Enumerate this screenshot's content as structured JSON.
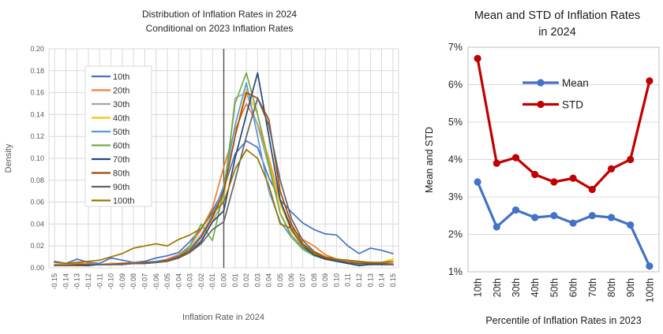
{
  "page": {
    "background": "#ffffff",
    "grid_color": "#d9d9d9",
    "reference_line_color": "#595959"
  },
  "chart_data": [
    {
      "type": "line",
      "title": "Distribution of Inflation Rates in 2024 Conditional on 2023 Inflation Rates",
      "title_lines": [
        "Distribution of Inflation Rates in 2024",
        "Conditional on 2023 Inflation Rates"
      ],
      "xlabel": "Inflation Rate in 2024",
      "ylabel": "Density",
      "xlim": [
        -0.155,
        0.155
      ],
      "ylim": [
        0,
        0.2
      ],
      "grid": "both",
      "reference_line_x": 0,
      "legend_position": "inside-left",
      "y_ticks": [
        0,
        0.02,
        0.04,
        0.06,
        0.08,
        0.1,
        0.12,
        0.14,
        0.16,
        0.18,
        0.2
      ],
      "x": [
        -0.15,
        -0.14,
        -0.13,
        -0.12,
        -0.11,
        -0.1,
        -0.09,
        -0.08,
        -0.07,
        -0.06,
        -0.05,
        -0.04,
        -0.03,
        -0.02,
        -0.01,
        0.0,
        0.01,
        0.02,
        0.03,
        0.04,
        0.05,
        0.06,
        0.07,
        0.08,
        0.09,
        0.1,
        0.11,
        0.12,
        0.13,
        0.14,
        0.15
      ],
      "series": [
        {
          "name": "10th",
          "color": "#4472C4",
          "values": [
            0.006,
            0.004,
            0.008,
            0.005,
            0.004,
            0.009,
            0.007,
            0.005,
            0.006,
            0.009,
            0.011,
            0.014,
            0.024,
            0.036,
            0.052,
            0.072,
            0.104,
            0.116,
            0.11,
            0.082,
            0.062,
            0.051,
            0.041,
            0.035,
            0.031,
            0.03,
            0.02,
            0.013,
            0.018,
            0.016,
            0.013
          ]
        },
        {
          "name": "20th",
          "color": "#ED7D31",
          "values": [
            0.003,
            0.003,
            0.004,
            0.004,
            0.003,
            0.004,
            0.004,
            0.005,
            0.005,
            0.006,
            0.008,
            0.012,
            0.02,
            0.035,
            0.055,
            0.092,
            0.126,
            0.15,
            0.131,
            0.1,
            0.061,
            0.037,
            0.026,
            0.02,
            0.012,
            0.008,
            0.006,
            0.005,
            0.004,
            0.005,
            0.004
          ]
        },
        {
          "name": "30th",
          "color": "#A5A5A5",
          "values": [
            0.002,
            0.002,
            0.003,
            0.003,
            0.003,
            0.003,
            0.004,
            0.004,
            0.005,
            0.005,
            0.006,
            0.009,
            0.015,
            0.025,
            0.042,
            0.062,
            0.155,
            0.16,
            0.13,
            0.092,
            0.05,
            0.03,
            0.019,
            0.012,
            0.009,
            0.007,
            0.005,
            0.004,
            0.004,
            0.003,
            0.003
          ]
        },
        {
          "name": "40th",
          "color": "#FFC000",
          "values": [
            0.002,
            0.002,
            0.002,
            0.003,
            0.003,
            0.003,
            0.003,
            0.004,
            0.004,
            0.005,
            0.007,
            0.01,
            0.017,
            0.028,
            0.045,
            0.068,
            0.12,
            0.163,
            0.14,
            0.098,
            0.058,
            0.034,
            0.02,
            0.013,
            0.009,
            0.007,
            0.005,
            0.004,
            0.004,
            0.005,
            0.008
          ]
        },
        {
          "name": "50th",
          "color": "#5B9BD5",
          "values": [
            0.002,
            0.002,
            0.003,
            0.003,
            0.003,
            0.003,
            0.004,
            0.004,
            0.005,
            0.006,
            0.007,
            0.011,
            0.018,
            0.03,
            0.048,
            0.075,
            0.13,
            0.169,
            0.12,
            0.07,
            0.042,
            0.028,
            0.018,
            0.012,
            0.008,
            0.006,
            0.005,
            0.004,
            0.003,
            0.003,
            0.003
          ]
        },
        {
          "name": "60th",
          "color": "#70AD47",
          "values": [
            0.002,
            0.002,
            0.002,
            0.003,
            0.003,
            0.003,
            0.003,
            0.004,
            0.004,
            0.005,
            0.006,
            0.01,
            0.02,
            0.04,
            0.025,
            0.07,
            0.15,
            0.178,
            0.14,
            0.095,
            0.05,
            0.028,
            0.017,
            0.011,
            0.008,
            0.006,
            0.004,
            0.003,
            0.004,
            0.003,
            0.003
          ]
        },
        {
          "name": "70th",
          "color": "#264478",
          "values": [
            0.002,
            0.002,
            0.002,
            0.002,
            0.003,
            0.003,
            0.003,
            0.004,
            0.004,
            0.005,
            0.006,
            0.009,
            0.014,
            0.024,
            0.042,
            0.052,
            0.1,
            0.14,
            0.178,
            0.12,
            0.062,
            0.035,
            0.02,
            0.012,
            0.008,
            0.006,
            0.004,
            0.002,
            0.003,
            0.003,
            0.003
          ]
        },
        {
          "name": "80th",
          "color": "#9E480E",
          "values": [
            0.002,
            0.002,
            0.003,
            0.003,
            0.003,
            0.003,
            0.004,
            0.004,
            0.005,
            0.005,
            0.007,
            0.01,
            0.016,
            0.028,
            0.046,
            0.07,
            0.12,
            0.16,
            0.155,
            0.135,
            0.07,
            0.04,
            0.022,
            0.014,
            0.009,
            0.007,
            0.005,
            0.004,
            0.004,
            0.004,
            0.003
          ]
        },
        {
          "name": "90th",
          "color": "#636363",
          "values": [
            0.002,
            0.002,
            0.002,
            0.003,
            0.003,
            0.003,
            0.003,
            0.004,
            0.004,
            0.005,
            0.006,
            0.009,
            0.014,
            0.022,
            0.035,
            0.042,
            0.08,
            0.12,
            0.155,
            0.13,
            0.08,
            0.045,
            0.025,
            0.015,
            0.01,
            0.007,
            0.005,
            0.004,
            0.005,
            0.004,
            0.003
          ]
        },
        {
          "name": "100th",
          "color": "#997300",
          "values": [
            0.005,
            0.004,
            0.005,
            0.006,
            0.007,
            0.01,
            0.013,
            0.018,
            0.02,
            0.022,
            0.02,
            0.026,
            0.03,
            0.036,
            0.05,
            0.06,
            0.09,
            0.108,
            0.1,
            0.075,
            0.04,
            0.036,
            0.02,
            0.015,
            0.01,
            0.008,
            0.007,
            0.006,
            0.005,
            0.005,
            0.006
          ]
        }
      ]
    },
    {
      "type": "line",
      "title": "Mean and STD of Inflation Rates in 2024",
      "title_lines": [
        "Mean and STD of Inflation Rates",
        "in 2024"
      ],
      "xlabel": "Percentile of Inflation Rates in 2023",
      "ylabel": "Mean and STD",
      "categories": [
        "10th",
        "20th",
        "30th",
        "40th",
        "50th",
        "60th",
        "70th",
        "80th",
        "90th",
        "100th"
      ],
      "ylim": [
        1,
        7
      ],
      "y_tick_labels": [
        "1%",
        "2%",
        "3%",
        "4%",
        "5%",
        "6%",
        "7%"
      ],
      "grid": "horizontal",
      "markers": true,
      "legend_position": "inside-top",
      "series": [
        {
          "name": "Mean",
          "color": "#4472C4",
          "values": [
            3.4,
            2.2,
            2.65,
            2.45,
            2.5,
            2.3,
            2.5,
            2.45,
            2.25,
            1.15
          ]
        },
        {
          "name": "STD",
          "color": "#C00000",
          "values": [
            6.7,
            3.9,
            4.05,
            3.6,
            3.4,
            3.5,
            3.2,
            3.75,
            4.0,
            6.1
          ]
        }
      ]
    }
  ]
}
